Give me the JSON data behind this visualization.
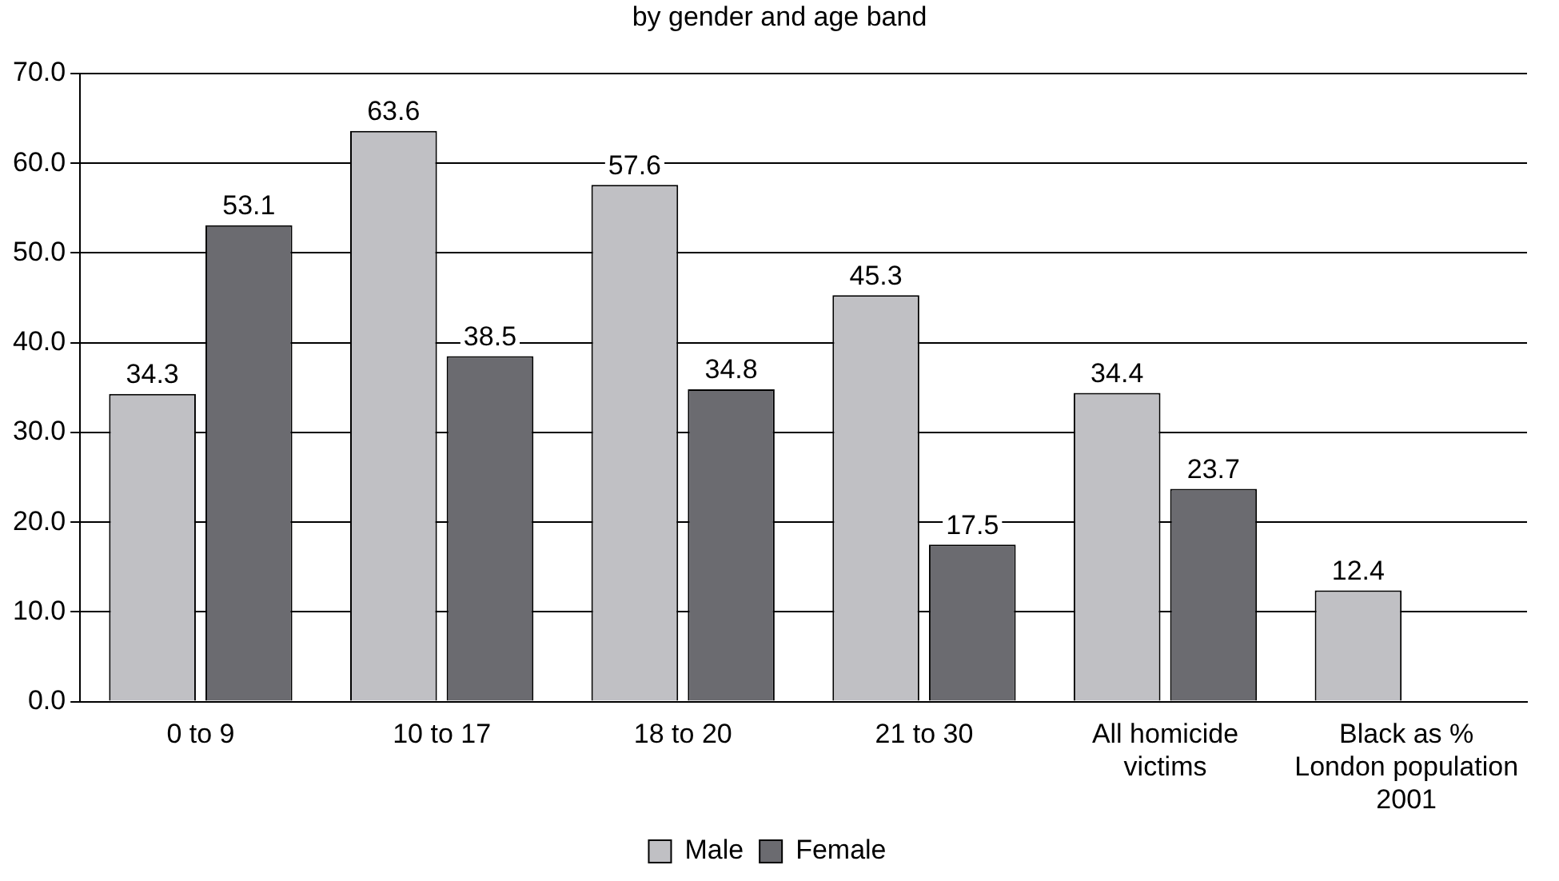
{
  "chart_data": {
    "type": "bar",
    "subtitle": "by gender and age band",
    "categories": [
      "0 to 9",
      "10 to 17",
      "18 to 20",
      "21 to 30",
      "All homicide victims",
      "Black as % London population 2001"
    ],
    "series": [
      {
        "name": "Male",
        "color": "#c0c0c4",
        "values": [
          34.3,
          63.6,
          57.6,
          45.3,
          34.4,
          12.4
        ]
      },
      {
        "name": "Female",
        "color": "#6b6b70",
        "values": [
          53.1,
          38.5,
          34.8,
          17.5,
          23.7,
          null
        ]
      }
    ],
    "ylim": [
      0,
      70
    ],
    "yticks": [
      {
        "value": 0,
        "label": "0.0"
      },
      {
        "value": 10,
        "label": "10.0"
      },
      {
        "value": 20,
        "label": "20.0"
      },
      {
        "value": 30,
        "label": "30.0"
      },
      {
        "value": 40,
        "label": "40.0"
      },
      {
        "value": 50,
        "label": "50.0"
      },
      {
        "value": 60,
        "label": "60.0"
      },
      {
        "value": 70,
        "label": "70.0"
      }
    ],
    "grid": "y",
    "legend": "bottom",
    "data_labels": true
  }
}
